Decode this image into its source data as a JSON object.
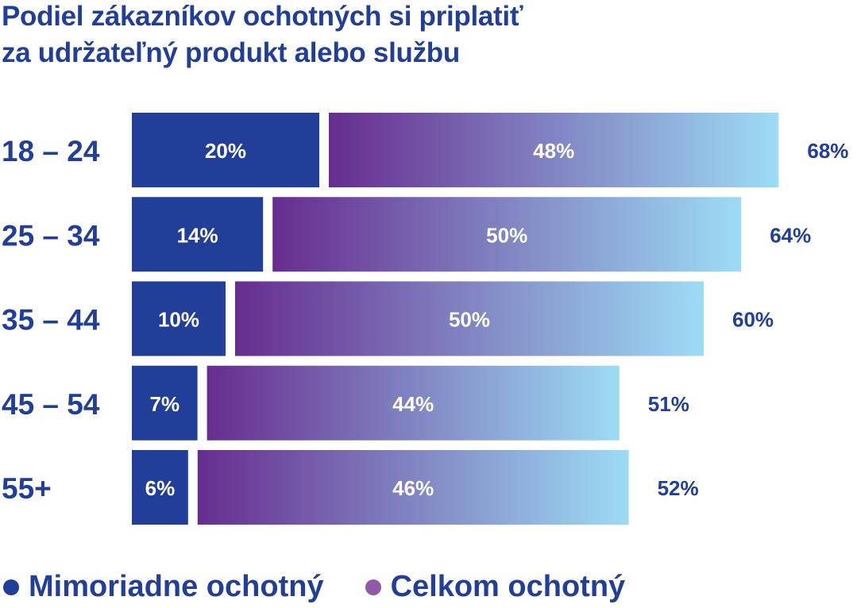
{
  "chart_data": {
    "type": "bar",
    "stacked": true,
    "orientation": "horizontal",
    "title": [
      "Podiel zákazníkov ochotných si priplatiť",
      "za udržateľný produkt alebo službu"
    ],
    "categories": [
      "18 – 24",
      "25 – 34",
      "35 – 44",
      "45 – 54",
      "55+"
    ],
    "series": [
      {
        "name": "Mimoriadne ochotný",
        "values": [
          20,
          14,
          10,
          7,
          6
        ],
        "color": "#213f99"
      },
      {
        "name": "Celkom ochotný",
        "values": [
          48,
          50,
          50,
          44,
          46
        ],
        "color_start": "#662d8f",
        "color_end": "#9ddcf5",
        "legend_color": "#8e5aa6"
      }
    ],
    "totals": [
      68,
      64,
      60,
      51,
      52
    ],
    "unit": "%",
    "grid": false,
    "legend_position": "bottom-left"
  }
}
